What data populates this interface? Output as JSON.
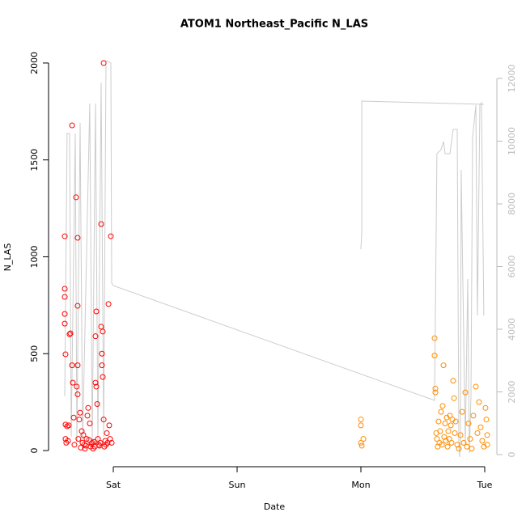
{
  "chart_data": {
    "type": "scatter",
    "title": "ATOM1 Northeast_Pacific N_LAS",
    "x_label": "Date",
    "y_label": "N_LAS",
    "xlim": [
      -0.523,
      3.098
    ],
    "xticks": [
      {
        "value": 0,
        "label": "Sat"
      },
      {
        "value": 1,
        "label": "Sun"
      },
      {
        "value": 2,
        "label": "Mon"
      },
      {
        "value": 3,
        "label": "Tue"
      }
    ],
    "ylim": [
      -83.5,
      2079
    ],
    "yticks": [
      0,
      500,
      1000,
      1500,
      2000
    ],
    "y2lim": [
      -387,
      12981
    ],
    "y2ticks": [
      0,
      2000,
      4000,
      6000,
      8000,
      10000,
      12000
    ],
    "y2_color": "#bbbbbb",
    "series": [
      {
        "type": "scatter",
        "color": "#ff0000",
        "x": [
          -0.392,
          -0.392,
          -0.392,
          -0.392,
          -0.392,
          -0.386,
          -0.386,
          -0.386,
          -0.38,
          -0.373,
          -0.366,
          -0.36,
          -0.353,
          -0.346,
          -0.333,
          -0.333,
          -0.327,
          -0.32,
          -0.314,
          -0.301,
          -0.295,
          -0.288,
          -0.288,
          -0.288,
          -0.288,
          -0.282,
          -0.275,
          -0.268,
          -0.262,
          -0.255,
          -0.249,
          -0.242,
          -0.235,
          -0.229,
          -0.222,
          -0.216,
          -0.209,
          -0.203,
          -0.196,
          -0.19,
          -0.183,
          -0.177,
          -0.17,
          -0.163,
          -0.157,
          -0.15,
          -0.144,
          -0.144,
          -0.137,
          -0.137,
          -0.13,
          -0.124,
          -0.118,
          -0.111,
          -0.105,
          -0.098,
          -0.098,
          -0.092,
          -0.092,
          -0.085,
          -0.085,
          -0.078,
          -0.078,
          -0.072,
          -0.065,
          -0.059,
          -0.052,
          -0.046,
          -0.039,
          -0.033,
          -0.026,
          -0.02,
          -0.013
        ],
        "values": [
          1106,
          835,
          793,
          705,
          655,
          497,
          134,
          60,
          40,
          125,
          50,
          130,
          600,
          605,
          1678,
          440,
          350,
          170,
          30,
          1307,
          330,
          1098,
          747,
          440,
          290,
          60,
          160,
          195,
          15,
          100,
          40,
          80,
          30,
          10,
          25,
          60,
          180,
          220,
          55,
          140,
          20,
          35,
          40,
          10,
          45,
          20,
          590,
          350,
          330,
          718,
          240,
          60,
          30,
          25,
          40,
          1169,
          639,
          500,
          440,
          614,
          380,
          2000,
          160,
          20,
          50,
          30,
          90,
          40,
          756,
          130,
          60,
          1106,
          40
        ]
      },
      {
        "type": "scatter",
        "color": "#ff8c00",
        "x": [
          2.0,
          2.0,
          2.0,
          2.007,
          2.02,
          2.595,
          2.595,
          2.601,
          2.601,
          2.608,
          2.614,
          2.62,
          2.627,
          2.634,
          2.64,
          2.647,
          2.654,
          2.66,
          2.667,
          2.673,
          2.68,
          2.686,
          2.693,
          2.7,
          2.706,
          2.713,
          2.719,
          2.726,
          2.732,
          2.739,
          2.745,
          2.752,
          2.758,
          2.765,
          2.778,
          2.791,
          2.804,
          2.817,
          2.83,
          2.843,
          2.856,
          2.869,
          2.882,
          2.895,
          2.908,
          2.928,
          2.941,
          2.954,
          2.967,
          2.98,
          2.993,
          3.006,
          3.013,
          3.02,
          3.02
        ],
        "values": [
          160,
          130,
          40,
          25,
          60,
          580,
          490,
          320,
          300,
          90,
          60,
          20,
          150,
          40,
          100,
          200,
          30,
          230,
          440,
          70,
          140,
          50,
          170,
          20,
          100,
          60,
          180,
          130,
          40,
          160,
          360,
          270,
          90,
          150,
          30,
          10,
          80,
          200,
          40,
          300,
          20,
          140,
          60,
          10,
          180,
          330,
          90,
          250,
          120,
          50,
          20,
          220,
          160,
          80,
          30
        ]
      },
      {
        "type": "line",
        "axis": "y2",
        "color": "#cccccc",
        "x": [
          -0.392,
          -0.373,
          -0.353,
          -0.34,
          -0.307,
          -0.294,
          -0.268,
          -0.248,
          -0.19,
          -0.17,
          -0.144,
          -0.124,
          -0.098,
          -0.078,
          -0.059,
          -0.02,
          -0.013,
          0,
          2.595,
          2.614,
          2.647,
          2.667,
          2.68,
          2.719,
          2.745,
          2.778,
          2.791,
          2.797,
          2.804,
          2.81,
          2.843,
          2.863,
          2.876,
          2.889,
          2.902,
          2.928,
          2.941,
          2.961,
          2.974,
          2.993,
          null,
          2.0,
          2.007,
          2.007,
          2.993
        ],
        "values": [
          1858,
          10245,
          10245,
          568,
          10245,
          439,
          10580,
          439,
          11200,
          439,
          11200,
          439,
          11870,
          568,
          12570,
          12490,
          5470,
          5390,
          1729,
          9600,
          9730,
          9987,
          9600,
          9600,
          10374,
          10374,
          439,
          -77,
          439,
          9084,
          310,
          5600,
          52,
          1858,
          10116,
          11148,
          4439,
          11148,
          11226,
          4439,
          null,
          6555,
          7148,
          11277,
          11174
        ]
      }
    ]
  }
}
